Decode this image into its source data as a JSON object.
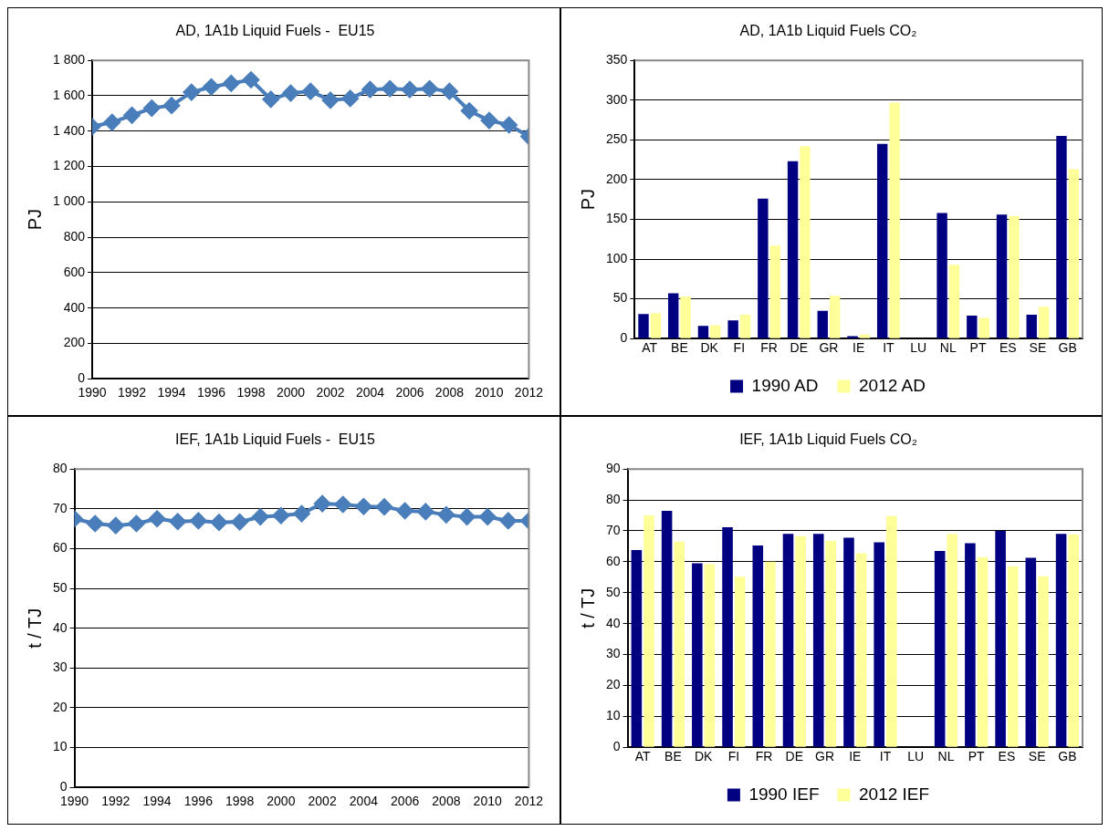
{
  "chart_data": [
    {
      "type": "line",
      "title": "AD, 1A1b Liquid Fuels -  EU15",
      "ylabel": "PJ",
      "x": [
        1990,
        1991,
        1992,
        1993,
        1994,
        1995,
        1996,
        1997,
        1998,
        1999,
        2000,
        2001,
        2002,
        2003,
        2004,
        2005,
        2006,
        2007,
        2008,
        2009,
        2010,
        2011,
        2012
      ],
      "series": [
        {
          "color": "#4a7ebb",
          "values": [
            1425,
            1450,
            1490,
            1530,
            1545,
            1620,
            1650,
            1670,
            1690,
            1580,
            1615,
            1625,
            1575,
            1585,
            1635,
            1640,
            1635,
            1640,
            1625,
            1515,
            1460,
            1435,
            1370
          ]
        }
      ],
      "xlim": [
        1990,
        2012
      ],
      "xticks": [
        1990,
        1992,
        1994,
        1996,
        1998,
        2000,
        2002,
        2004,
        2006,
        2008,
        2010,
        2012
      ],
      "ylim": [
        0,
        1800
      ],
      "yticks": [
        0,
        200,
        400,
        600,
        800,
        {
          "value": 1000,
          "label": "1 000"
        },
        {
          "value": 1200,
          "label": "1 200"
        },
        {
          "value": 1400,
          "label": "1 400"
        },
        {
          "value": 1600,
          "label": "1 600"
        },
        {
          "value": 1800,
          "label": "1 800"
        }
      ],
      "grid": "y",
      "legend": false,
      "marker": "diamond",
      "line_style": "solid"
    },
    {
      "type": "bar",
      "title": "AD, 1A1b Liquid Fuels CO₂",
      "ylabel": "PJ",
      "categories": [
        "AT",
        "BE",
        "DK",
        "FI",
        "FR",
        "DE",
        "GR",
        "IE",
        "IT",
        "LU",
        "NL",
        "PT",
        "ES",
        "SE",
        "GB"
      ],
      "series": [
        {
          "name": "1990 AD",
          "color": "#000080",
          "values": [
            31,
            57,
            16,
            23,
            176,
            223,
            35,
            3,
            245,
            null,
            158,
            29,
            156,
            30,
            255
          ]
        },
        {
          "name": "2012 AD",
          "color": "#ffff99",
          "values": [
            32,
            53,
            17,
            30,
            117,
            242,
            54,
            5,
            297,
            null,
            93,
            26,
            154,
            40,
            213
          ]
        }
      ],
      "ylim": [
        0,
        350
      ],
      "yticks": [
        0,
        50,
        100,
        150,
        200,
        250,
        300,
        350
      ],
      "grid": "y",
      "legend": "bottom"
    },
    {
      "type": "line",
      "title": "IEF, 1A1b Liquid Fuels -  EU15",
      "ylabel": "t / TJ",
      "x": [
        1990,
        1991,
        1992,
        1993,
        1994,
        1995,
        1996,
        1997,
        1998,
        1999,
        2000,
        2001,
        2002,
        2003,
        2004,
        2005,
        2006,
        2007,
        2008,
        2009,
        2010,
        2011,
        2012
      ],
      "series": [
        {
          "color": "#4a7ebb",
          "values": [
            67.5,
            66.3,
            65.8,
            66.3,
            67.5,
            66.8,
            67,
            66.6,
            66.7,
            68,
            68.3,
            68.8,
            71.3,
            71.1,
            70.6,
            70.5,
            69.5,
            69.3,
            68.5,
            68,
            68,
            67,
            67
          ]
        }
      ],
      "xlim": [
        1990,
        2012
      ],
      "xticks": [
        1990,
        1992,
        1994,
        1996,
        1998,
        2000,
        2002,
        2004,
        2006,
        2008,
        2010,
        2012
      ],
      "ylim": [
        0,
        80
      ],
      "yticks": [
        0,
        10,
        20,
        30,
        40,
        50,
        60,
        70,
        80
      ],
      "grid": "y",
      "legend": false,
      "marker": "diamond",
      "line_style": "solid"
    },
    {
      "type": "bar",
      "title": "IEF, 1A1b Liquid Fuels CO₂",
      "ylabel": "t / TJ",
      "categories": [
        "AT",
        "BE",
        "DK",
        "FI",
        "FR",
        "DE",
        "GR",
        "IE",
        "IT",
        "LU",
        "NL",
        "PT",
        "ES",
        "SE",
        "GB"
      ],
      "series": [
        {
          "name": "1990 IEF",
          "color": "#000080",
          "values": [
            63.8,
            76.5,
            59.5,
            71.2,
            65.3,
            69,
            69,
            67.8,
            66.3,
            null,
            63.5,
            66,
            70,
            61.3,
            69
          ]
        },
        {
          "name": "2012 IEF",
          "color": "#ffff99",
          "values": [
            75,
            66.5,
            59.2,
            55.2,
            60,
            68.3,
            66.8,
            62.8,
            74.8,
            null,
            69,
            61.5,
            58.5,
            55.3,
            68.8
          ]
        }
      ],
      "ylim": [
        0,
        90
      ],
      "yticks": [
        0,
        10,
        20,
        30,
        40,
        50,
        60,
        70,
        80,
        90
      ],
      "grid": "y",
      "legend": "bottom"
    }
  ]
}
